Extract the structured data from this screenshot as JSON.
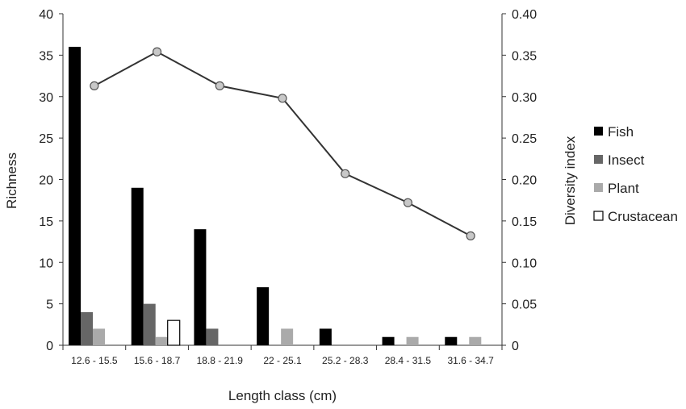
{
  "chart_data": {
    "type": "bar",
    "categories": [
      "12.6 - 15.5",
      "15.6 - 18.7",
      "18.8 - 21.9",
      "22 - 25.1",
      "25.2 - 28.3",
      "28.4 - 31.5",
      "31.6 - 34.7"
    ],
    "series": [
      {
        "name": "Fish",
        "values": [
          36,
          19,
          14,
          7,
          2,
          1,
          1
        ],
        "color": "#000000",
        "axis": "left"
      },
      {
        "name": "Insect",
        "values": [
          4,
          5,
          2,
          0,
          0,
          0,
          0
        ],
        "color": "#666666",
        "axis": "left"
      },
      {
        "name": "Plant",
        "values": [
          2,
          1,
          0,
          2,
          0,
          1,
          1
        ],
        "color": "#aaaaaa",
        "axis": "left"
      },
      {
        "name": "Crustacean",
        "values": [
          0,
          3,
          0,
          0,
          0,
          0,
          0
        ],
        "color": "#ffffff",
        "axis": "left"
      }
    ],
    "line_series": {
      "name": "Diversity index",
      "values": [
        0.313,
        0.354,
        0.313,
        0.298,
        0.207,
        0.172,
        0.132
      ],
      "color": "#333333",
      "marker_fill": "#c8c8c8"
    },
    "xlabel": "Length class (cm)",
    "ylabel": "Richness",
    "y2label": "Diversity index",
    "ylim": [
      0,
      40
    ],
    "y2lim": [
      0,
      0.4
    ],
    "yticks": [
      "0",
      "5",
      "10",
      "15",
      "20",
      "25",
      "30",
      "35",
      "40"
    ],
    "y2ticks": [
      "0",
      "0.05",
      "0.10",
      "0.15",
      "0.20",
      "0.25",
      "0.30",
      "0.35",
      "0.40"
    ],
    "legend_position": "right",
    "grid": false
  }
}
